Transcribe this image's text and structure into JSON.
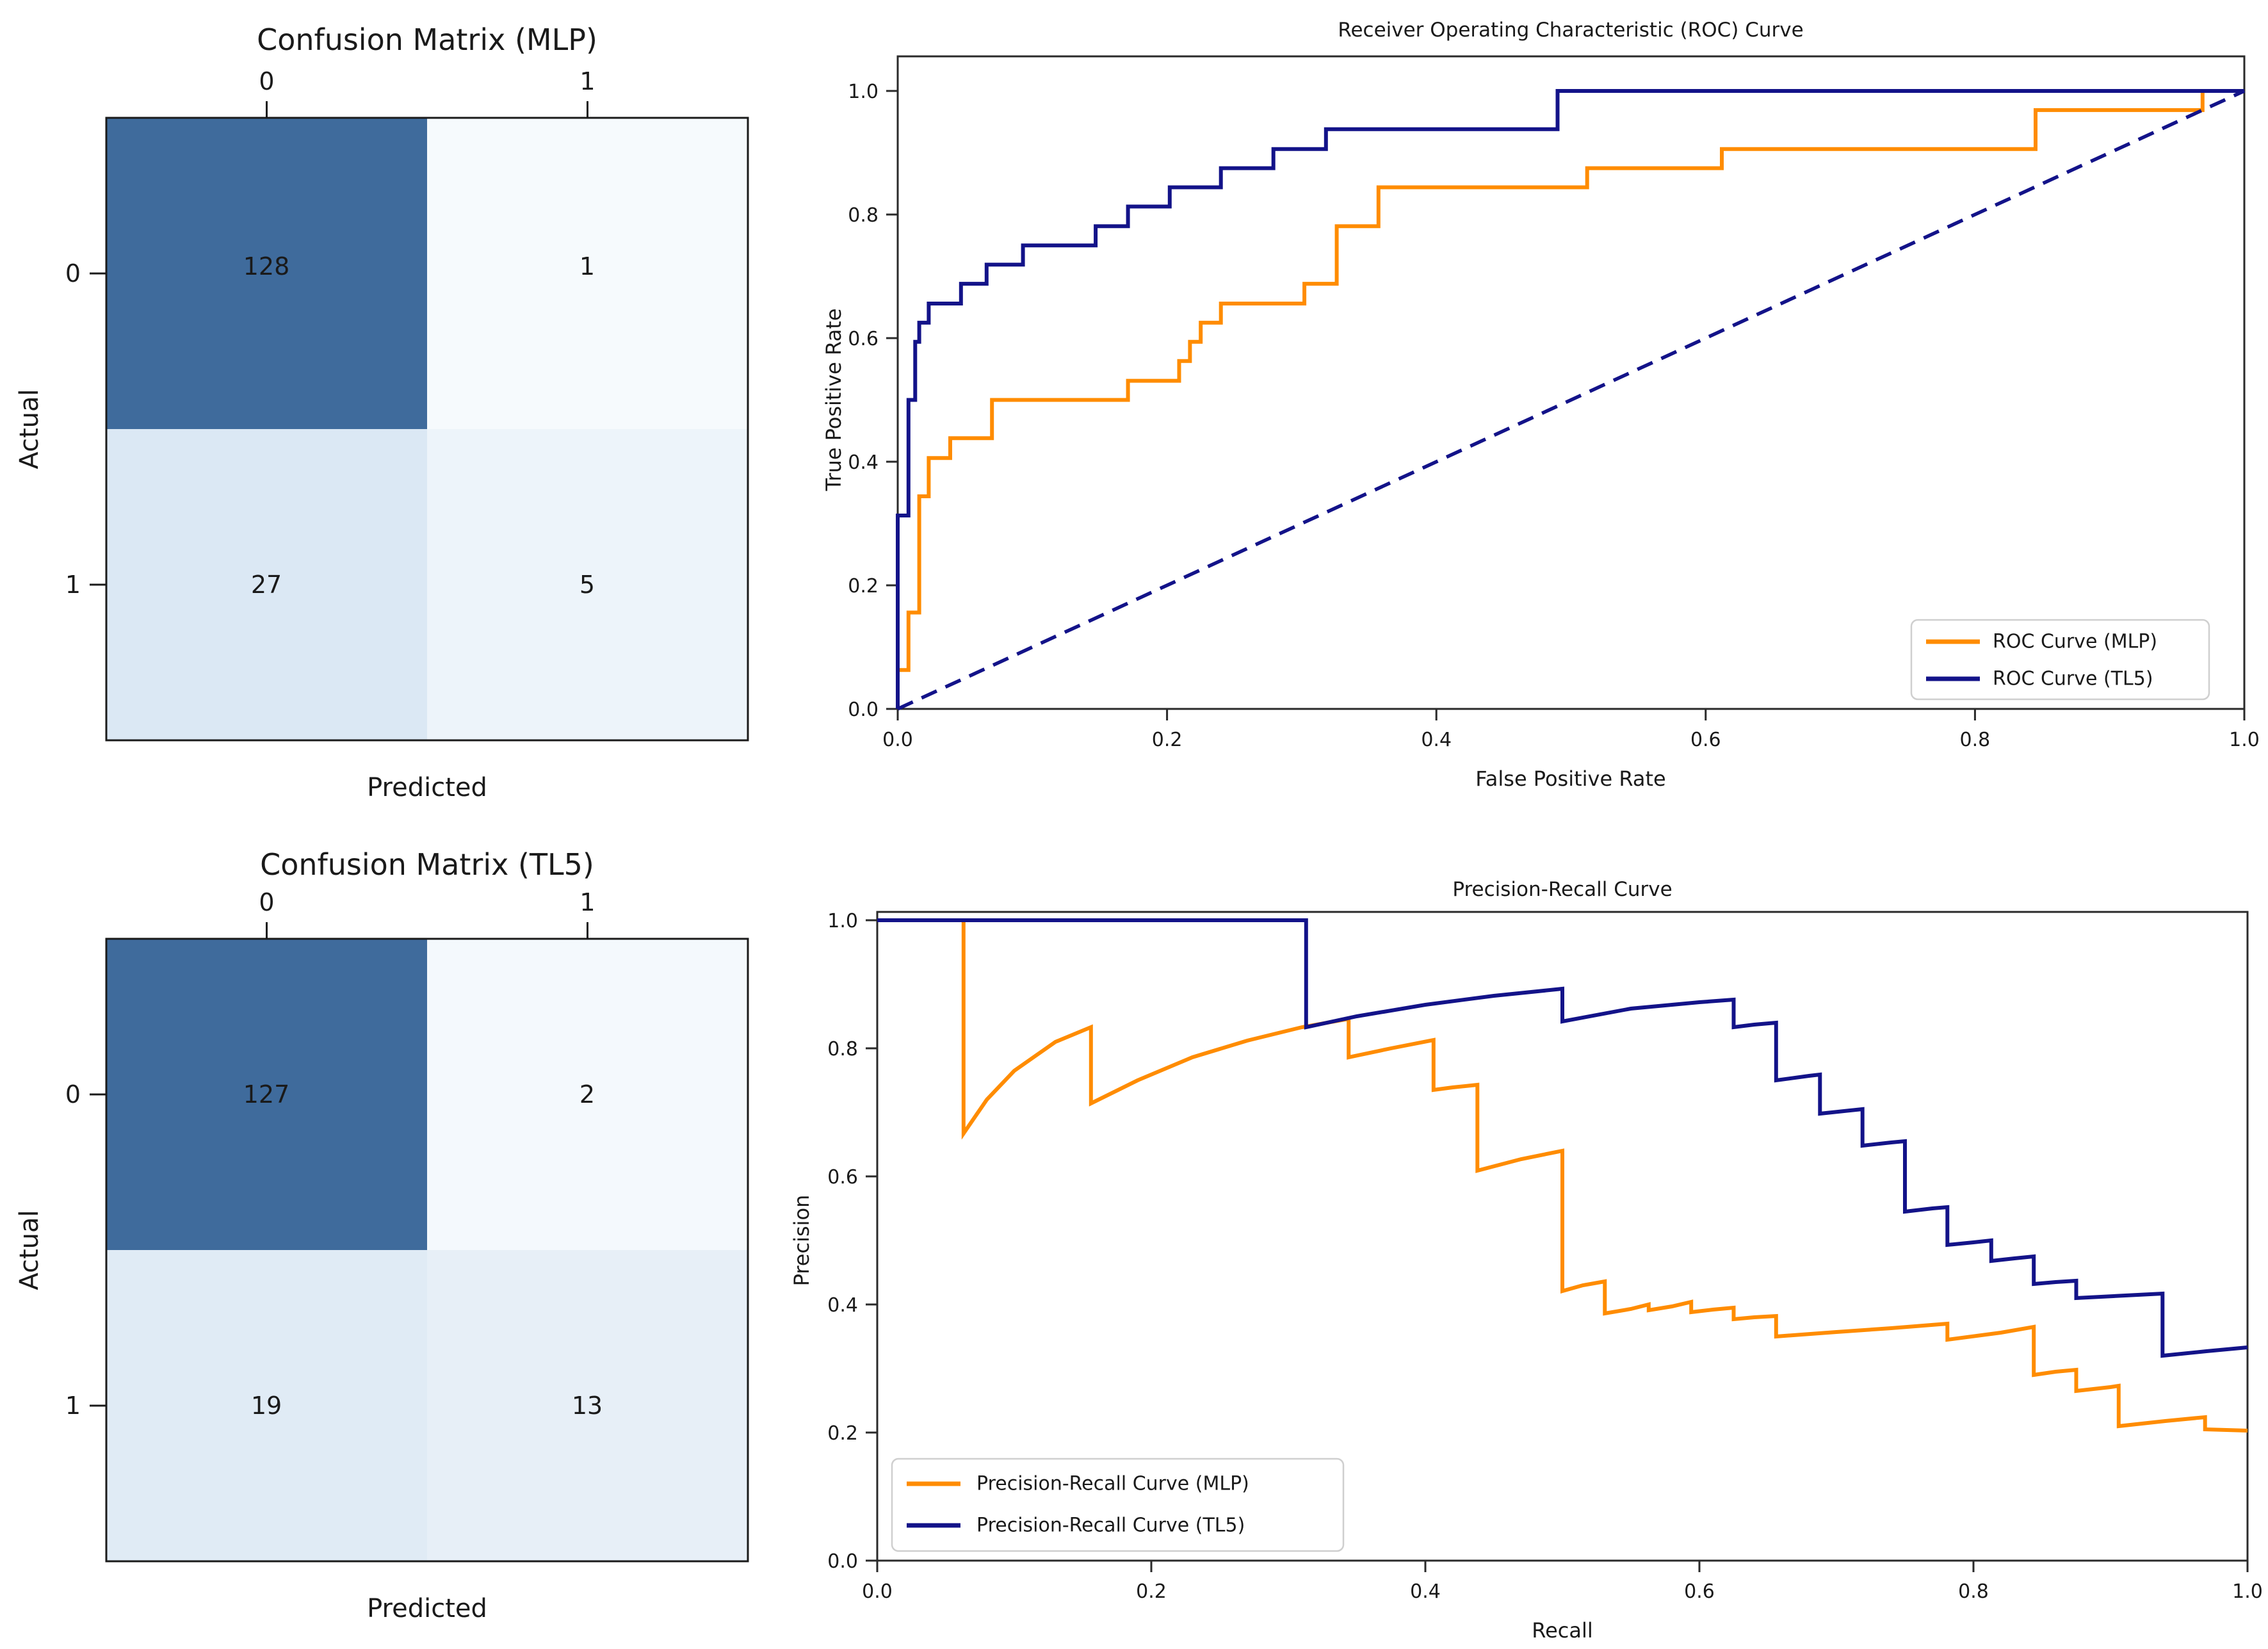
{
  "figure": {
    "background": "#ffffff",
    "spine_color": "#2a2a2a",
    "text_color": "#1a1a1a",
    "legend_border_color": "#cfcfcf"
  },
  "colors": {
    "mlp_orange": "#ff8c00",
    "tl5_navy": "#131389",
    "heatmap_dark": "#3f6b9c"
  },
  "chart_data": [
    {
      "id": "cm_mlp",
      "type": "heatmap",
      "title": "Confusion Matrix (MLP)",
      "xlabel": "Predicted",
      "ylabel": "Actual",
      "x_ticks": [
        "0",
        "1"
      ],
      "y_ticks": [
        "0",
        "1"
      ],
      "values": [
        [
          128,
          1
        ],
        [
          27,
          5
        ]
      ],
      "cell_colors": [
        [
          "#3f6b9c",
          "#f6fafd"
        ],
        [
          "#dbe8f4",
          "#edf4fa"
        ]
      ]
    },
    {
      "id": "roc",
      "type": "line",
      "title": "Receiver Operating Characteristic (ROC) Curve",
      "xlabel": "False Positive Rate",
      "ylabel": "True Positive Rate",
      "xlim": [
        0,
        1
      ],
      "ylim": [
        0,
        1.05
      ],
      "grid": false,
      "x_ticks": [
        "0.0",
        "0.2",
        "0.4",
        "0.6",
        "0.8",
        "1.0"
      ],
      "y_ticks": [
        "0.0",
        "0.2",
        "0.4",
        "0.6",
        "0.8",
        "1.0"
      ],
      "legend": {
        "position": "lower right",
        "entries": [
          {
            "label": "ROC Curve (MLP)",
            "color": "#ff8c00"
          },
          {
            "label": "ROC Curve (TL5)",
            "color": "#131389"
          }
        ]
      },
      "series": [
        {
          "name": "ROC Curve (MLP)",
          "color": "#ff8c00",
          "style": "solid",
          "points": [
            [
              0,
              0
            ],
            [
              0,
              0.063
            ],
            [
              0.008,
              0.063
            ],
            [
              0.008,
              0.156
            ],
            [
              0.016,
              0.156
            ],
            [
              0.016,
              0.344
            ],
            [
              0.023,
              0.344
            ],
            [
              0.023,
              0.406
            ],
            [
              0.039,
              0.406
            ],
            [
              0.039,
              0.438
            ],
            [
              0.07,
              0.438
            ],
            [
              0.07,
              0.5
            ],
            [
              0.171,
              0.5
            ],
            [
              0.171,
              0.531
            ],
            [
              0.209,
              0.531
            ],
            [
              0.209,
              0.563
            ],
            [
              0.217,
              0.563
            ],
            [
              0.217,
              0.594
            ],
            [
              0.225,
              0.594
            ],
            [
              0.225,
              0.625
            ],
            [
              0.24,
              0.625
            ],
            [
              0.24,
              0.656
            ],
            [
              0.256,
              0.656
            ],
            [
              0.302,
              0.656
            ],
            [
              0.302,
              0.688
            ],
            [
              0.326,
              0.688
            ],
            [
              0.326,
              0.781
            ],
            [
              0.357,
              0.781
            ],
            [
              0.357,
              0.844
            ],
            [
              0.512,
              0.844
            ],
            [
              0.512,
              0.875
            ],
            [
              0.612,
              0.875
            ],
            [
              0.612,
              0.906
            ],
            [
              0.845,
              0.906
            ],
            [
              0.845,
              0.969
            ],
            [
              0.969,
              0.969
            ],
            [
              0.969,
              1
            ],
            [
              1,
              1
            ]
          ]
        },
        {
          "name": "ROC Curve (TL5)",
          "color": "#131389",
          "style": "solid",
          "points": [
            [
              0,
              0
            ],
            [
              0,
              0.313
            ],
            [
              0.008,
              0.313
            ],
            [
              0.008,
              0.5
            ],
            [
              0.013,
              0.5
            ],
            [
              0.013,
              0.594
            ],
            [
              0.016,
              0.594
            ],
            [
              0.016,
              0.625
            ],
            [
              0.023,
              0.625
            ],
            [
              0.023,
              0.656
            ],
            [
              0.047,
              0.656
            ],
            [
              0.047,
              0.688
            ],
            [
              0.066,
              0.688
            ],
            [
              0.066,
              0.719
            ],
            [
              0.093,
              0.719
            ],
            [
              0.093,
              0.75
            ],
            [
              0.147,
              0.75
            ],
            [
              0.147,
              0.781
            ],
            [
              0.171,
              0.781
            ],
            [
              0.171,
              0.813
            ],
            [
              0.202,
              0.813
            ],
            [
              0.202,
              0.844
            ],
            [
              0.24,
              0.844
            ],
            [
              0.24,
              0.875
            ],
            [
              0.279,
              0.875
            ],
            [
              0.279,
              0.906
            ],
            [
              0.318,
              0.906
            ],
            [
              0.318,
              0.938
            ],
            [
              0.49,
              0.938
            ],
            [
              0.49,
              1
            ],
            [
              1,
              1
            ]
          ]
        },
        {
          "name": "chance-diagonal",
          "color": "#131389",
          "style": "dashed",
          "points": [
            [
              0,
              0
            ],
            [
              1,
              1
            ]
          ]
        }
      ]
    },
    {
      "id": "cm_tl5",
      "type": "heatmap",
      "title": "Confusion Matrix (TL5)",
      "xlabel": "Predicted",
      "ylabel": "Actual",
      "x_ticks": [
        "0",
        "1"
      ],
      "y_ticks": [
        "0",
        "1"
      ],
      "values": [
        [
          127,
          2
        ],
        [
          19,
          13
        ]
      ],
      "cell_colors": [
        [
          "#3f6b9c",
          "#f4f9fd"
        ],
        [
          "#e0ebf5",
          "#e7eff7"
        ]
      ]
    },
    {
      "id": "pr",
      "type": "line",
      "title": "Precision-Recall Curve",
      "xlabel": "Recall",
      "ylabel": "Precision",
      "xlim": [
        0,
        1
      ],
      "ylim": [
        0,
        1.013
      ],
      "grid": false,
      "x_ticks": [
        "0.0",
        "0.2",
        "0.4",
        "0.6",
        "0.8",
        "1.0"
      ],
      "y_ticks": [
        "0.0",
        "0.2",
        "0.4",
        "0.6",
        "0.8",
        "1.0"
      ],
      "legend": {
        "position": "lower left",
        "entries": [
          {
            "label": "Precision-Recall Curve (MLP)",
            "color": "#ff8c00"
          },
          {
            "label": "Precision-Recall Curve (TL5)",
            "color": "#131389"
          }
        ]
      },
      "series": [
        {
          "name": "Precision-Recall Curve (MLP)",
          "color": "#ff8c00",
          "style": "solid",
          "points": [
            [
              0,
              1
            ],
            [
              0.063,
              1
            ],
            [
              0.063,
              0.667
            ],
            [
              0.08,
              0.72
            ],
            [
              0.1,
              0.765
            ],
            [
              0.13,
              0.81
            ],
            [
              0.156,
              0.833
            ],
            [
              0.156,
              0.714
            ],
            [
              0.19,
              0.75
            ],
            [
              0.23,
              0.786
            ],
            [
              0.27,
              0.812
            ],
            [
              0.31,
              0.833
            ],
            [
              0.344,
              0.846
            ],
            [
              0.344,
              0.786
            ],
            [
              0.375,
              0.8
            ],
            [
              0.406,
              0.813
            ],
            [
              0.406,
              0.735
            ],
            [
              0.42,
              0.739
            ],
            [
              0.438,
              0.743
            ],
            [
              0.438,
              0.609
            ],
            [
              0.47,
              0.627
            ],
            [
              0.5,
              0.64
            ],
            [
              0.5,
              0.421
            ],
            [
              0.515,
              0.43
            ],
            [
              0.531,
              0.436
            ],
            [
              0.531,
              0.386
            ],
            [
              0.55,
              0.393
            ],
            [
              0.563,
              0.4
            ],
            [
              0.563,
              0.391
            ],
            [
              0.58,
              0.397
            ],
            [
              0.594,
              0.404
            ],
            [
              0.594,
              0.388
            ],
            [
              0.61,
              0.392
            ],
            [
              0.625,
              0.395
            ],
            [
              0.625,
              0.377
            ],
            [
              0.64,
              0.38
            ],
            [
              0.656,
              0.382
            ],
            [
              0.656,
              0.35
            ],
            [
              0.7,
              0.357
            ],
            [
              0.74,
              0.363
            ],
            [
              0.781,
              0.37
            ],
            [
              0.781,
              0.345
            ],
            [
              0.82,
              0.356
            ],
            [
              0.844,
              0.365
            ],
            [
              0.844,
              0.29
            ],
            [
              0.86,
              0.295
            ],
            [
              0.875,
              0.298
            ],
            [
              0.875,
              0.265
            ],
            [
              0.9,
              0.271
            ],
            [
              0.906,
              0.273
            ],
            [
              0.906,
              0.21
            ],
            [
              0.94,
              0.218
            ],
            [
              0.969,
              0.224
            ],
            [
              0.969,
              0.205
            ],
            [
              1,
              0.203
            ]
          ]
        },
        {
          "name": "Precision-Recall Curve (TL5)",
          "color": "#131389",
          "style": "solid",
          "points": [
            [
              0,
              1
            ],
            [
              0.313,
              1
            ],
            [
              0.313,
              0.833
            ],
            [
              0.35,
              0.85
            ],
            [
              0.4,
              0.868
            ],
            [
              0.45,
              0.882
            ],
            [
              0.5,
              0.893
            ],
            [
              0.5,
              0.842
            ],
            [
              0.55,
              0.862
            ],
            [
              0.6,
              0.872
            ],
            [
              0.625,
              0.876
            ],
            [
              0.625,
              0.833
            ],
            [
              0.64,
              0.837
            ],
            [
              0.656,
              0.84
            ],
            [
              0.656,
              0.75
            ],
            [
              0.68,
              0.757
            ],
            [
              0.688,
              0.759
            ],
            [
              0.688,
              0.698
            ],
            [
              0.71,
              0.703
            ],
            [
              0.719,
              0.705
            ],
            [
              0.719,
              0.648
            ],
            [
              0.74,
              0.653
            ],
            [
              0.75,
              0.655
            ],
            [
              0.75,
              0.545
            ],
            [
              0.77,
              0.55
            ],
            [
              0.781,
              0.552
            ],
            [
              0.781,
              0.493
            ],
            [
              0.8,
              0.497
            ],
            [
              0.813,
              0.5
            ],
            [
              0.813,
              0.468
            ],
            [
              0.83,
              0.472
            ],
            [
              0.844,
              0.475
            ],
            [
              0.844,
              0.432
            ],
            [
              0.86,
              0.435
            ],
            [
              0.875,
              0.437
            ],
            [
              0.875,
              0.41
            ],
            [
              0.92,
              0.415
            ],
            [
              0.938,
              0.417
            ],
            [
              0.938,
              0.32
            ],
            [
              0.97,
              0.327
            ],
            [
              1,
              0.333
            ]
          ]
        }
      ]
    }
  ]
}
